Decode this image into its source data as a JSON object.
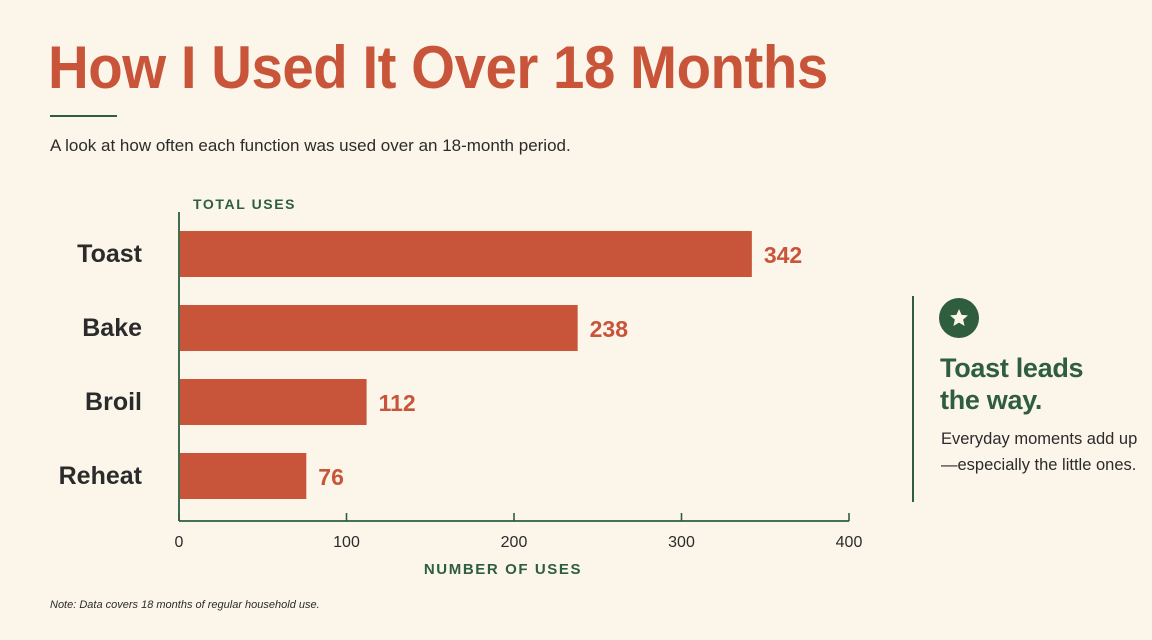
{
  "colors": {
    "accent": "#C8553A",
    "green": "#2E5E3E",
    "background": "#FBF5EA",
    "text": "#2B2B2B"
  },
  "header": {
    "title": "How I Used It Over 18 Months",
    "subtitle": "A look at how often each function was used over an 18-month period."
  },
  "callout": {
    "icon": "star-icon",
    "headline_line1": "Toast leads",
    "headline_line2": "the way.",
    "body": "Everyday moments add up—especially the little ones."
  },
  "footer": {
    "note": "Note: Data covers 18 months of regular household use."
  },
  "chart_data": {
    "type": "bar",
    "orientation": "horizontal",
    "categories": [
      "Toast",
      "Bake",
      "Broil",
      "Reheat"
    ],
    "values": [
      342,
      238,
      112,
      76
    ],
    "data_labels": [
      "342",
      "238",
      "112",
      "76"
    ],
    "xlabel": "NUMBER OF USES",
    "ylabel": "TOTAL USES",
    "xlim": [
      0,
      400
    ],
    "xticks": [
      0,
      100,
      200,
      300,
      400
    ],
    "grid": false,
    "legend": "none",
    "bar_color": "#C8553A"
  }
}
